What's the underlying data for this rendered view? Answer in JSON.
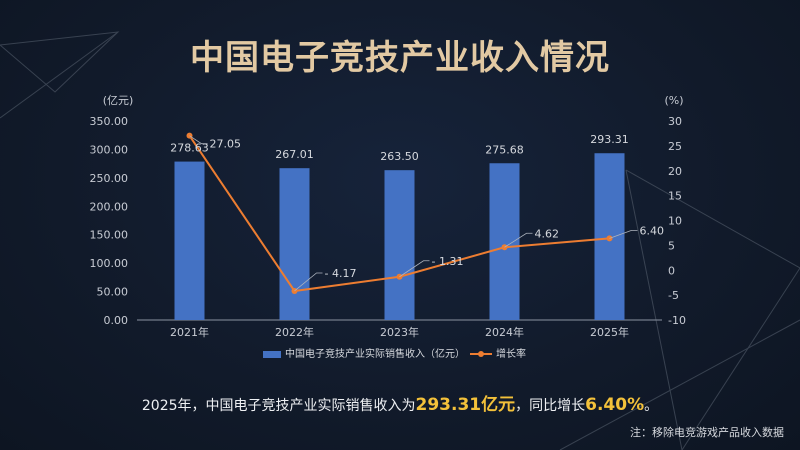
{
  "page": {
    "title": "中国电子竞技产业收入情况",
    "note": "注：移除电竞游戏产品收入数据"
  },
  "summary": {
    "prefix": "2025年，中国电子竞技产业实际销售收入为",
    "revenue": "293.31亿元",
    "middle": "，同比增长",
    "growth": "6.40%",
    "suffix": "。"
  },
  "colors": {
    "bar": "#4472c4",
    "line": "#ed7d31",
    "title": "#e2c9a3",
    "highlight": "#f3c13a"
  },
  "chart_data": {
    "type": "bar",
    "categories": [
      "2021年",
      "2022年",
      "2023年",
      "2024年",
      "2025年"
    ],
    "y_unit_left": "(亿元)",
    "y_unit_right": "(%)",
    "ylim_left": [
      0,
      350
    ],
    "yticks_left": [
      "0.00",
      "50.00",
      "100.00",
      "150.00",
      "200.00",
      "250.00",
      "300.00",
      "350.00"
    ],
    "ylim_right": [
      -10,
      30
    ],
    "yticks_right": [
      "-10",
      "-5",
      "0",
      "5",
      "10",
      "15",
      "20",
      "25",
      "30"
    ],
    "series": [
      {
        "name": "中国电子竞技产业实际销售收入（亿元）",
        "type": "bar",
        "axis": "left",
        "values": [
          278.63,
          267.01,
          263.5,
          275.68,
          293.31
        ],
        "labels": [
          "278.63",
          "267.01",
          "263.50",
          "275.68",
          "293.31"
        ]
      },
      {
        "name": "增长率",
        "type": "line",
        "axis": "right",
        "values": [
          27.05,
          -4.17,
          -1.31,
          4.62,
          6.4
        ],
        "labels": [
          "27.05",
          "- 4.17",
          "- 1.31",
          "4.62",
          "6.40"
        ]
      }
    ],
    "grid": false,
    "legend_position": "bottom"
  }
}
